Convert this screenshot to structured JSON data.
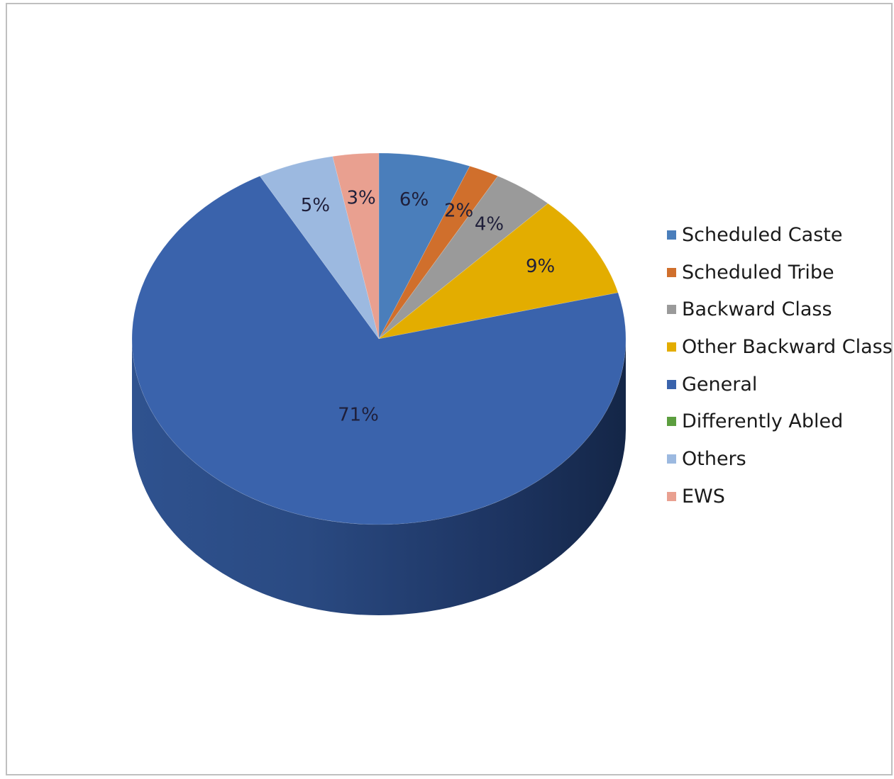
{
  "chart_data": {
    "type": "pie",
    "style": "3d",
    "slices": [
      {
        "label": "Scheduled Caste",
        "value": 6,
        "display": "6%",
        "color": "#4a7ebb"
      },
      {
        "label": "Scheduled Tribe",
        "value": 2,
        "display": "2%",
        "color": "#d06f2c"
      },
      {
        "label": "Backward Class",
        "value": 4,
        "display": "4%",
        "color": "#9a9a9a"
      },
      {
        "label": "Other Backward Class",
        "value": 9,
        "display": "9%",
        "color": "#e3ad00"
      },
      {
        "label": "General",
        "value": 71,
        "display": "71%",
        "color": "#3a63ac"
      },
      {
        "label": "Differently Abled",
        "value": 0,
        "display": "",
        "color": "#5c9e3f"
      },
      {
        "label": "Others",
        "value": 5,
        "display": "5%",
        "color": "#9cb9e0"
      },
      {
        "label": "EWS",
        "value": 3,
        "display": "3%",
        "color": "#e9a090"
      }
    ],
    "legend_position": "right"
  }
}
